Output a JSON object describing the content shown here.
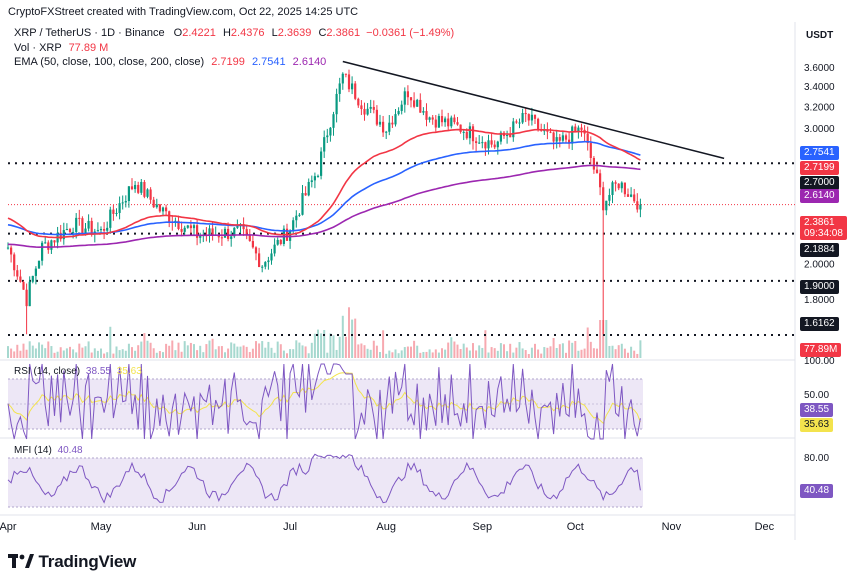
{
  "header": {
    "credit": "CryptoFXStreet created with TradingView.com, Oct 22, 2025 14:25 UTC",
    "symbol": "XRP / TetherUS · 1D · Binance",
    "o_label": "O",
    "o_val": "2.4221",
    "h_label": "H",
    "h_val": "2.4376",
    "l_label": "L",
    "l_val": "2.3639",
    "c_label": "C",
    "c_val": "2.3861",
    "change": "−0.0361 (−1.49%)",
    "vol_label": "Vol · XRP",
    "vol_val": "77.89 M",
    "ema_label": "EMA (50, close, 100, close, 200, close)",
    "ema50_val": "2.7199",
    "ema100_val": "2.7541",
    "ema200_val": "2.6140"
  },
  "currency": "USDT",
  "logo_text": "TradingView",
  "colors": {
    "up": "#089981",
    "down": "#f23645",
    "ema50": "#f23645",
    "ema100": "#2962ff",
    "ema200": "#9c27b0",
    "rsi": "#7e57c2",
    "rsi_ma": "#f3e34d",
    "mfi": "#7e57c2",
    "band": "#d1c4e9"
  },
  "chart_data": [
    {
      "type": "candlestick",
      "title": "XRP / TetherUS · 1D · Binance",
      "ylim": [
        1.55,
        3.8
      ],
      "y_ticks": [
        "3.6000",
        "3.4000",
        "3.2000",
        "3.0000",
        "2.0000",
        "1.8000"
      ],
      "x_ticks": [
        "Apr",
        "May",
        "Jun",
        "Jul",
        "Aug",
        "Sep",
        "Oct",
        "Nov",
        "Dec"
      ],
      "levels": [
        {
          "label": "2.7000",
          "value": 2.7
        },
        {
          "label": "2.1884",
          "value": 2.1884
        },
        {
          "label": "1.9000",
          "value": 1.9
        },
        {
          "label": "1.6162",
          "value": 1.6162
        }
      ],
      "last_price": {
        "label": "2.3861",
        "countdown": "09:34:08"
      },
      "ema_tags": [
        {
          "label": "2.7541",
          "series": "ema100"
        },
        {
          "label": "2.7199",
          "series": "ema50"
        },
        {
          "label": "2.6140",
          "series": "ema200"
        }
      ],
      "descending_trendline": {
        "from": [
          "2025-07-18",
          3.66
        ],
        "to": [
          "2025-11-18",
          2.74
        ]
      },
      "closes_key": [
        [
          "2025-04-01",
          2.1
        ],
        [
          "2025-04-07",
          1.8
        ],
        [
          "2025-04-12",
          2.1
        ],
        [
          "2025-04-22",
          2.25
        ],
        [
          "2025-05-01",
          2.2
        ],
        [
          "2025-05-12",
          2.55
        ],
        [
          "2025-05-20",
          2.35
        ],
        [
          "2025-06-01",
          2.18
        ],
        [
          "2025-06-15",
          2.2
        ],
        [
          "2025-06-22",
          2.0
        ],
        [
          "2025-07-01",
          2.22
        ],
        [
          "2025-07-10",
          2.65
        ],
        [
          "2025-07-18",
          3.5
        ],
        [
          "2025-07-25",
          3.2
        ],
        [
          "2025-08-01",
          3.0
        ],
        [
          "2025-08-08",
          3.35
        ],
        [
          "2025-08-15",
          3.1
        ],
        [
          "2025-08-25",
          3.0
        ],
        [
          "2025-09-05",
          2.85
        ],
        [
          "2025-09-15",
          3.1
        ],
        [
          "2025-09-25",
          2.85
        ],
        [
          "2025-10-03",
          3.0
        ],
        [
          "2025-10-10",
          2.4
        ],
        [
          "2025-10-15",
          2.55
        ],
        [
          "2025-10-22",
          2.3861
        ]
      ]
    },
    {
      "type": "bar",
      "title": "Vol · XRP",
      "last_label": "77.89M"
    },
    {
      "type": "line",
      "title": "RSI (14, close)",
      "rsi_label": "RSI (14, close)",
      "rsi_val": "38.55",
      "rsi_ma_val": "35.63",
      "ylim": [
        0,
        100
      ],
      "y_ticks": [
        "100.00",
        "50.00"
      ]
    },
    {
      "type": "line",
      "title": "MFI (14)",
      "mfi_label": "MFI (14)",
      "mfi_val": "40.48",
      "ylim": [
        0,
        100
      ],
      "y_ticks": [
        "80.00"
      ]
    }
  ]
}
